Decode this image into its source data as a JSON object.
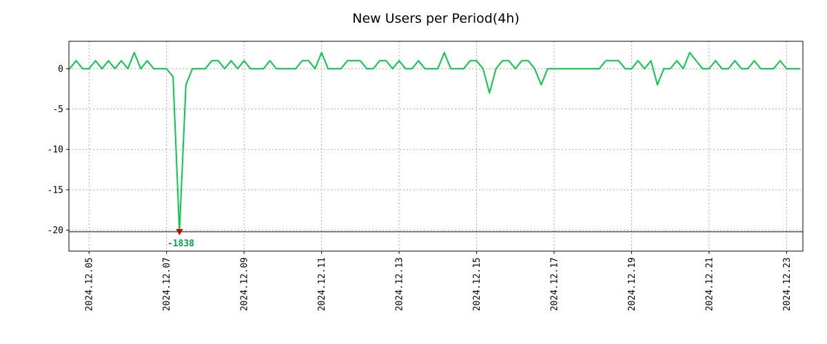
{
  "chart_data": {
    "type": "line",
    "title": "New Users per Period(4h)",
    "series_name": "New Users",
    "line_color": "#00cc44",
    "grid_color": "#ababab",
    "axis_color": "#000000",
    "background": "#ffffff",
    "period_hours": 4,
    "x_start_day": -0.5,
    "x_step_days": 0.1666667,
    "xlim": [
      -0.52,
      18.42
    ],
    "ylim": [
      -22.6,
      3.4
    ],
    "y_ticks": [
      0,
      -5,
      -10,
      -15,
      -20
    ],
    "x_tick_days": [
      0,
      2,
      4,
      6,
      8,
      10,
      12,
      14,
      16,
      18
    ],
    "x_tick_labels": [
      "2024.12.05",
      "2024.12.07",
      "2024.12.09",
      "2024.12.11",
      "2024.12.13",
      "2024.12.15",
      "2024.12.17",
      "2024.12.19",
      "2024.12.21",
      "2024.12.23"
    ],
    "min_marker": {
      "value": -1838,
      "display_y": -20.2,
      "color": "#cc0000",
      "label": "-1838",
      "label_color": "#00aa44"
    },
    "values": [
      0,
      1,
      0,
      0,
      1,
      0,
      1,
      0,
      1,
      0,
      2,
      0,
      1,
      0,
      0,
      0,
      -1,
      -1838,
      -2,
      0,
      0,
      0,
      1,
      1,
      0,
      1,
      0,
      1,
      0,
      0,
      0,
      1,
      0,
      0,
      0,
      0,
      1,
      1,
      0,
      2,
      0,
      0,
      0,
      1,
      1,
      1,
      0,
      0,
      1,
      1,
      0,
      1,
      0,
      0,
      1,
      0,
      0,
      0,
      2,
      0,
      0,
      0,
      1,
      1,
      0,
      -3,
      0,
      1,
      1,
      0,
      1,
      1,
      0,
      -2,
      0,
      0,
      0,
      0,
      0,
      0,
      0,
      0,
      0,
      1,
      1,
      1,
      0,
      0,
      1,
      0,
      1,
      -2,
      0,
      0,
      1,
      0,
      2,
      1,
      0,
      0,
      1,
      0,
      0,
      1,
      0,
      0,
      1,
      0,
      0,
      0,
      1,
      0,
      0,
      0
    ]
  }
}
